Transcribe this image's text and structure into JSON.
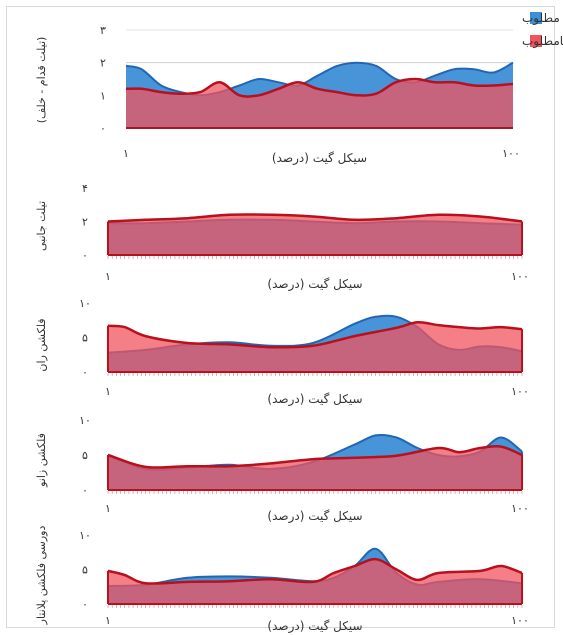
{
  "colors": {
    "desirable_fill": "#3e8ed6",
    "desirable_line": "#2266b3",
    "undesirable_fill": "#f0545f",
    "undesirable_line": "#b8101c"
  },
  "legend": {
    "desirable": "توانایی عملکردی مطلوب",
    "undesirable": "توانایی عملکردی نامطلوب"
  },
  "chart_data": [
    {
      "type": "area",
      "ylabel": "(تیلت قدام - خلف)",
      "xlabel": "سیکل گیت (درصد)",
      "x_ticks": [
        "۱",
        "۱۰۰"
      ],
      "y_ticks": [
        "۳",
        "۲",
        "۱",
        "۰"
      ],
      "ylim": [
        0,
        3
      ],
      "xlim": [
        1,
        100
      ],
      "series": [
        {
          "name": "توانایی عملکردی مطلوب",
          "x": [
            1,
            5,
            10,
            15,
            20,
            25,
            30,
            35,
            40,
            45,
            50,
            55,
            60,
            65,
            70,
            75,
            80,
            85,
            90,
            95,
            100
          ],
          "values": [
            1.9,
            1.8,
            1.3,
            1.1,
            1.0,
            1.1,
            1.3,
            1.5,
            1.4,
            1.3,
            1.6,
            1.9,
            2.0,
            1.9,
            1.5,
            1.4,
            1.6,
            1.8,
            1.8,
            1.7,
            2.0
          ]
        },
        {
          "name": "توانایی عملکردی نامطلوب",
          "x": [
            1,
            5,
            10,
            15,
            20,
            25,
            30,
            35,
            40,
            45,
            50,
            55,
            60,
            65,
            70,
            75,
            80,
            85,
            90,
            95,
            100
          ],
          "values": [
            1.2,
            1.2,
            1.1,
            1.05,
            1.1,
            1.4,
            1.0,
            1.0,
            1.2,
            1.4,
            1.2,
            1.1,
            1.0,
            1.05,
            1.4,
            1.5,
            1.4,
            1.4,
            1.3,
            1.3,
            1.35
          ]
        }
      ]
    },
    {
      "type": "area",
      "ylabel": "تیلت جانبی",
      "xlabel": "سیکل گیت (درصد)",
      "x_ticks": [
        "۱",
        "۱۰۰"
      ],
      "y_ticks": [
        "۴",
        "۲",
        "۰"
      ],
      "ylim": [
        0,
        4
      ],
      "xlim": [
        1,
        100
      ],
      "series": [
        {
          "name": "توانایی عملکردی مطلوب",
          "x": [
            1,
            10,
            20,
            30,
            40,
            50,
            60,
            70,
            80,
            90,
            100
          ],
          "values": [
            1.9,
            1.9,
            2.0,
            2.1,
            2.1,
            2.0,
            1.9,
            2.0,
            2.0,
            1.9,
            1.8
          ]
        },
        {
          "name": "توانایی عملکردی نامطلوب",
          "x": [
            1,
            10,
            20,
            30,
            40,
            50,
            60,
            70,
            80,
            90,
            100
          ],
          "values": [
            2.0,
            2.1,
            2.2,
            2.4,
            2.4,
            2.3,
            2.1,
            2.2,
            2.4,
            2.3,
            2.0
          ]
        }
      ]
    },
    {
      "type": "area",
      "ylabel": "فلکشن ران",
      "xlabel": "سیکل گیت (درصد)",
      "x_ticks": [
        "۱",
        "۱۰۰"
      ],
      "y_ticks": [
        "۱۰",
        "۵",
        "۰"
      ],
      "ylim": [
        0,
        10
      ],
      "xlim": [
        1,
        100
      ],
      "series": [
        {
          "name": "توانایی عملکردی مطلوب",
          "x": [
            1,
            10,
            20,
            30,
            40,
            50,
            60,
            65,
            70,
            75,
            80,
            85,
            90,
            95,
            100
          ],
          "values": [
            2.8,
            3.2,
            4.0,
            4.3,
            3.8,
            4.2,
            7.0,
            8.0,
            8.0,
            6.5,
            4.0,
            3.2,
            3.7,
            3.6,
            3.0
          ]
        },
        {
          "name": "توانایی عملکردی نامطلوب",
          "x": [
            1,
            5,
            10,
            20,
            30,
            40,
            50,
            60,
            70,
            75,
            80,
            85,
            90,
            95,
            100
          ],
          "values": [
            6.7,
            6.5,
            5.2,
            4.2,
            4.0,
            3.6,
            3.8,
            5.2,
            6.4,
            7.2,
            6.8,
            6.5,
            6.3,
            6.5,
            6.2
          ]
        }
      ]
    },
    {
      "type": "area",
      "ylabel": "فلکشن زانو",
      "xlabel": "سیکل گیت (درصد)",
      "x_ticks": [
        "۱",
        "۱۰۰"
      ],
      "y_ticks": [
        "۱۰",
        "۵",
        "۰"
      ],
      "ylim": [
        0,
        10
      ],
      "xlim": [
        1,
        100
      ],
      "series": [
        {
          "name": "توانایی عملکردی مطلوب",
          "x": [
            1,
            10,
            20,
            30,
            40,
            50,
            60,
            65,
            70,
            75,
            80,
            85,
            90,
            95,
            100
          ],
          "values": [
            5.0,
            3.0,
            3.2,
            3.6,
            3.0,
            4.0,
            6.5,
            7.8,
            7.5,
            6.0,
            5.0,
            4.8,
            5.5,
            7.5,
            5.5
          ]
        },
        {
          "name": "توانایی عملکردی نامطلوب",
          "x": [
            1,
            10,
            20,
            30,
            40,
            50,
            60,
            70,
            80,
            85,
            90,
            95,
            100
          ],
          "values": [
            5.0,
            3.3,
            3.4,
            3.4,
            3.8,
            4.4,
            4.6,
            4.9,
            6.0,
            5.4,
            6.0,
            6.2,
            5.0
          ]
        }
      ]
    },
    {
      "type": "area",
      "ylabel": "دورسی فلکشن پلانتار",
      "xlabel": "سیکل گیت (درصد)",
      "x_ticks": [
        "۱",
        "۱۰۰"
      ],
      "y_ticks": [
        "۱۰",
        "۵",
        "۰"
      ],
      "ylim": [
        0,
        10
      ],
      "xlim": [
        1,
        100
      ],
      "series": [
        {
          "name": "توانایی عملکردی مطلوب",
          "x": [
            1,
            10,
            20,
            30,
            40,
            50,
            55,
            60,
            65,
            70,
            75,
            80,
            90,
            100
          ],
          "values": [
            2.6,
            2.8,
            3.8,
            4.0,
            3.8,
            3.3,
            3.8,
            5.5,
            8.0,
            4.5,
            2.8,
            3.2,
            3.6,
            3.0
          ]
        },
        {
          "name": "توانایی عملکردی نامطلوب",
          "x": [
            1,
            5,
            10,
            20,
            30,
            40,
            50,
            55,
            60,
            65,
            70,
            75,
            80,
            90,
            95,
            100
          ],
          "values": [
            4.8,
            4.2,
            3.0,
            3.2,
            3.3,
            3.6,
            3.2,
            4.5,
            5.5,
            6.5,
            5.0,
            3.5,
            4.5,
            4.8,
            5.5,
            4.5
          ]
        }
      ]
    }
  ]
}
